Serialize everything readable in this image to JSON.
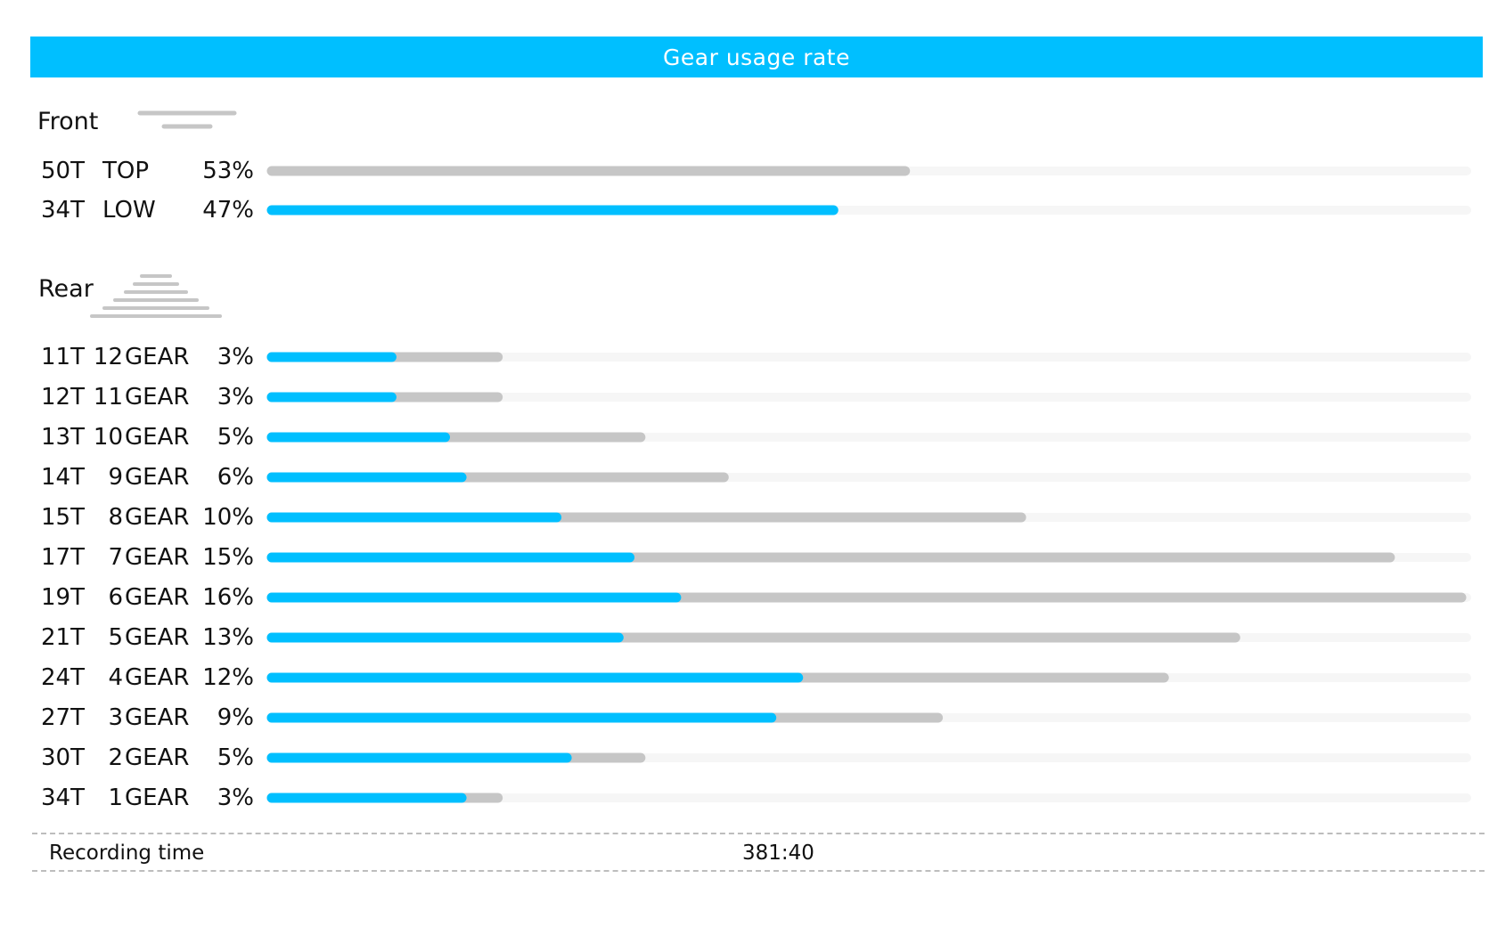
{
  "header": {
    "title": "Gear usage rate"
  },
  "colors": {
    "accent": "#00BFFF",
    "track": "#C6C6C6",
    "track_faint": "#F6F6F6",
    "header_bg": "#00BFFF"
  },
  "front": {
    "title": "Front",
    "icon": "front-chainring-icon"
  },
  "rear": {
    "title": "Rear",
    "icon": "rear-cassette-icon"
  },
  "footer": {
    "label": "Recording time",
    "value": "381:40"
  },
  "chart_data": [
    {
      "type": "bar",
      "section": "Front",
      "rows": [
        {
          "teeth": "50T",
          "name": "TOP",
          "percent_label": "53%",
          "percent": 53,
          "bar_fraction": 0.53,
          "highlight_fraction": 0,
          "color": "#C6C6C6"
        },
        {
          "teeth": "34T",
          "name": "LOW",
          "percent_label": "47%",
          "percent": 47,
          "bar_fraction": 0.47,
          "highlight_fraction": 1,
          "color": "#00BFFF"
        }
      ]
    },
    {
      "type": "bar",
      "section": "Rear",
      "rows": [
        {
          "teeth": "11T",
          "gear_num": "12",
          "gear_word": "GEAR",
          "percent_label": "3%",
          "percent": 3,
          "bar_fraction": 0.19,
          "highlight_fraction": 0.53
        },
        {
          "teeth": "12T",
          "gear_num": "11",
          "gear_word": "GEAR",
          "percent_label": "3%",
          "percent": 3,
          "bar_fraction": 0.19,
          "highlight_fraction": 0.53
        },
        {
          "teeth": "13T",
          "gear_num": "10",
          "gear_word": "GEAR",
          "percent_label": "5%",
          "percent": 5,
          "bar_fraction": 0.31,
          "highlight_fraction": 0.47
        },
        {
          "teeth": "14T",
          "gear_num": "9",
          "gear_word": "GEAR",
          "percent_label": "6%",
          "percent": 6,
          "bar_fraction": 0.38,
          "highlight_fraction": 0.42
        },
        {
          "teeth": "15T",
          "gear_num": "8",
          "gear_word": "GEAR",
          "percent_label": "10%",
          "percent": 10,
          "bar_fraction": 0.63,
          "highlight_fraction": 0.38
        },
        {
          "teeth": "17T",
          "gear_num": "7",
          "gear_word": "GEAR",
          "percent_label": "15%",
          "percent": 15,
          "bar_fraction": 0.94,
          "highlight_fraction": 0.32
        },
        {
          "teeth": "19T",
          "gear_num": "6",
          "gear_word": "GEAR",
          "percent_label": "16%",
          "percent": 16,
          "bar_fraction": 1.0,
          "highlight_fraction": 0.34
        },
        {
          "teeth": "21T",
          "gear_num": "5",
          "gear_word": "GEAR",
          "percent_label": "13%",
          "percent": 13,
          "bar_fraction": 0.81,
          "highlight_fraction": 0.36
        },
        {
          "teeth": "24T",
          "gear_num": "4",
          "gear_word": "GEAR",
          "percent_label": "12%",
          "percent": 12,
          "bar_fraction": 0.75,
          "highlight_fraction": 0.59
        },
        {
          "teeth": "27T",
          "gear_num": "3",
          "gear_word": "GEAR",
          "percent_label": "9%",
          "percent": 9,
          "bar_fraction": 0.56,
          "highlight_fraction": 0.75
        },
        {
          "teeth": "30T",
          "gear_num": "2",
          "gear_word": "GEAR",
          "percent_label": "5%",
          "percent": 5,
          "bar_fraction": 0.31,
          "highlight_fraction": 0.8
        },
        {
          "teeth": "34T",
          "gear_num": "1",
          "gear_word": "GEAR",
          "percent_label": "3%",
          "percent": 3,
          "bar_fraction": 0.19,
          "highlight_fraction": 0.84
        }
      ]
    }
  ]
}
